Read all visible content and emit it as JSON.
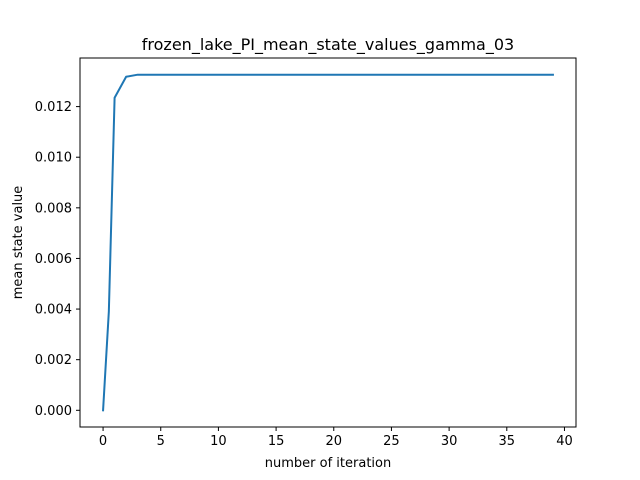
{
  "chart_data": {
    "type": "line",
    "title": "frozen_lake_PI_mean_state_values_gamma_03",
    "xlabel": "number of iteration",
    "ylabel": "mean state value",
    "xlim": [
      -2,
      41
    ],
    "ylim": [
      -0.00066,
      0.01392
    ],
    "x_ticks": [
      0,
      5,
      10,
      15,
      20,
      25,
      30,
      35,
      40
    ],
    "y_ticks": [
      0.0,
      0.002,
      0.004,
      0.006,
      0.008,
      0.01,
      0.012
    ],
    "x_tick_labels": [
      "0",
      "5",
      "10",
      "15",
      "20",
      "25",
      "30",
      "35",
      "40"
    ],
    "y_tick_labels": [
      "0.000",
      "0.002",
      "0.004",
      "0.006",
      "0.008",
      "0.010",
      "0.012"
    ],
    "grid": false,
    "line_color": "#1f77b4",
    "series": [
      {
        "x": [
          0,
          0.5,
          1,
          2,
          3,
          4,
          5,
          6,
          7,
          8,
          9,
          10,
          11,
          12,
          13,
          14,
          15,
          16,
          17,
          18,
          19,
          20,
          21,
          22,
          23,
          24,
          25,
          26,
          27,
          28,
          29,
          30,
          31,
          32,
          33,
          34,
          35,
          36,
          37,
          38,
          39
        ],
        "values": [
          0.0,
          0.0039,
          0.01235,
          0.01318,
          0.01326,
          0.01326,
          0.01326,
          0.01326,
          0.01326,
          0.01326,
          0.01326,
          0.01326,
          0.01326,
          0.01326,
          0.01326,
          0.01326,
          0.01326,
          0.01326,
          0.01326,
          0.01326,
          0.01326,
          0.01326,
          0.01326,
          0.01326,
          0.01326,
          0.01326,
          0.01326,
          0.01326,
          0.01326,
          0.01326,
          0.01326,
          0.01326,
          0.01326,
          0.01326,
          0.01326,
          0.01326,
          0.01326,
          0.01326,
          0.01326,
          0.01326,
          0.01326
        ]
      }
    ]
  }
}
